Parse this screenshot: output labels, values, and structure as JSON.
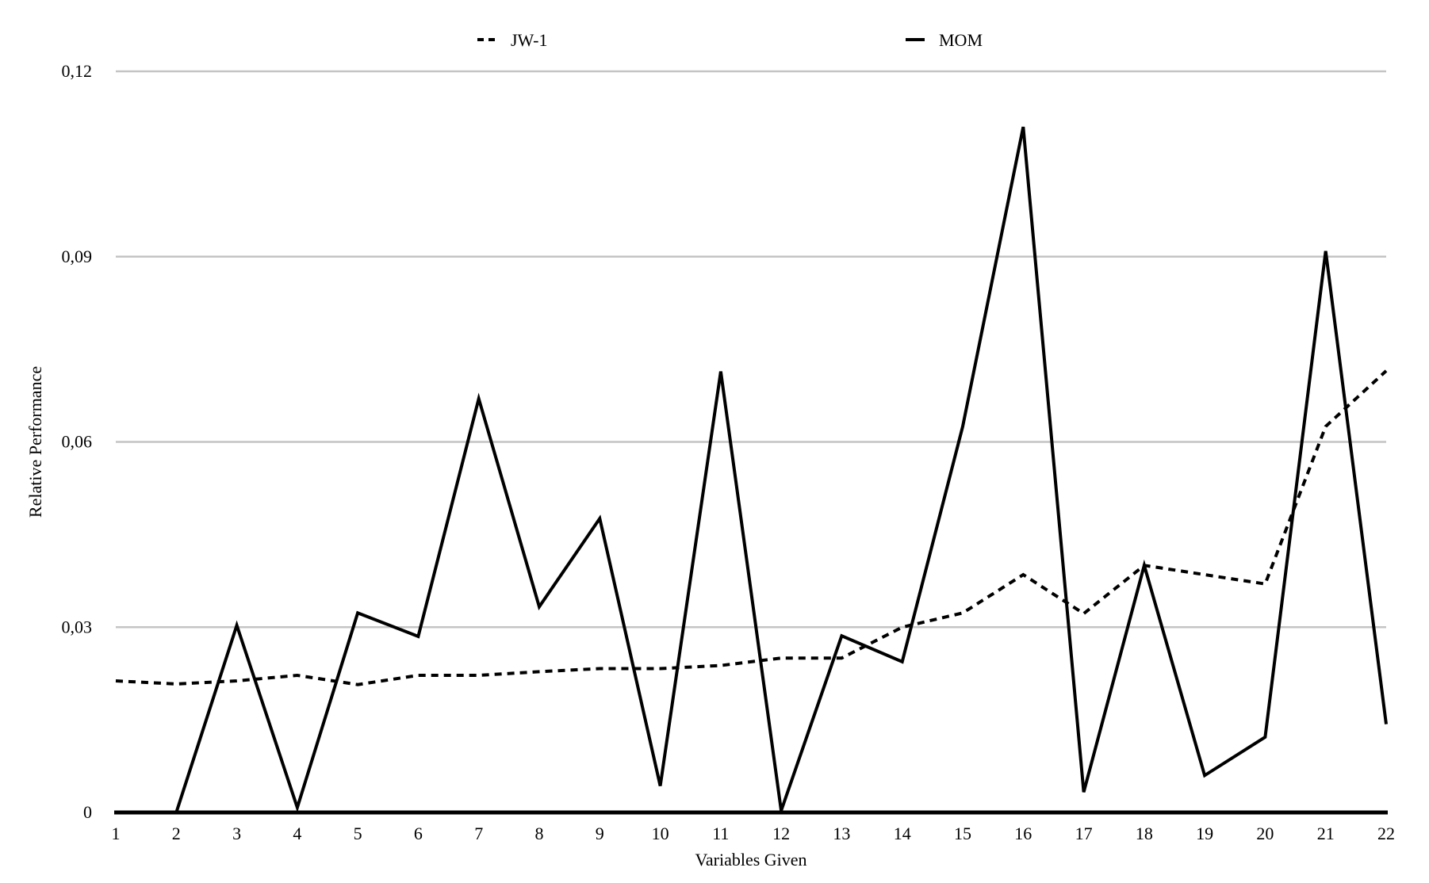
{
  "chart_data": {
    "type": "line",
    "xlabel": "Variables Given",
    "ylabel": "Relative Performance",
    "x": [
      1,
      2,
      3,
      4,
      5,
      6,
      7,
      8,
      9,
      10,
      11,
      12,
      13,
      14,
      15,
      16,
      17,
      18,
      19,
      20,
      21,
      22
    ],
    "ylim": [
      0,
      0.12
    ],
    "yticks": [
      0,
      0.03,
      0.06,
      0.09,
      0.12
    ],
    "ytick_labels": [
      "0",
      "0,03",
      "0,06",
      "0,09",
      "0,12"
    ],
    "grid": true,
    "legend_position": "top",
    "series": [
      {
        "name": "JW-1",
        "style": "dashed",
        "color": "#000000",
        "values": [
          0.0213,
          0.0208,
          0.0213,
          0.0222,
          0.0207,
          0.0222,
          0.0222,
          0.0228,
          0.0233,
          0.0233,
          0.0238,
          0.025,
          0.025,
          0.03,
          0.0323,
          0.0385,
          0.0322,
          0.04,
          0.0385,
          0.037,
          0.0625,
          0.0715
        ]
      },
      {
        "name": "MOM",
        "style": "solid",
        "color": "#000000",
        "values": [
          0.0,
          0.0,
          0.0303,
          0.0008,
          0.0323,
          0.0285,
          0.067,
          0.0333,
          0.0476,
          0.0043,
          0.0714,
          0.0003,
          0.0286,
          0.0244,
          0.0625,
          0.111,
          0.0033,
          0.04,
          0.006,
          0.0122,
          0.0909,
          0.0143
        ]
      }
    ]
  },
  "colors": {
    "grid": "#c4c4c4",
    "axis": "#000000",
    "line": "#000000"
  }
}
